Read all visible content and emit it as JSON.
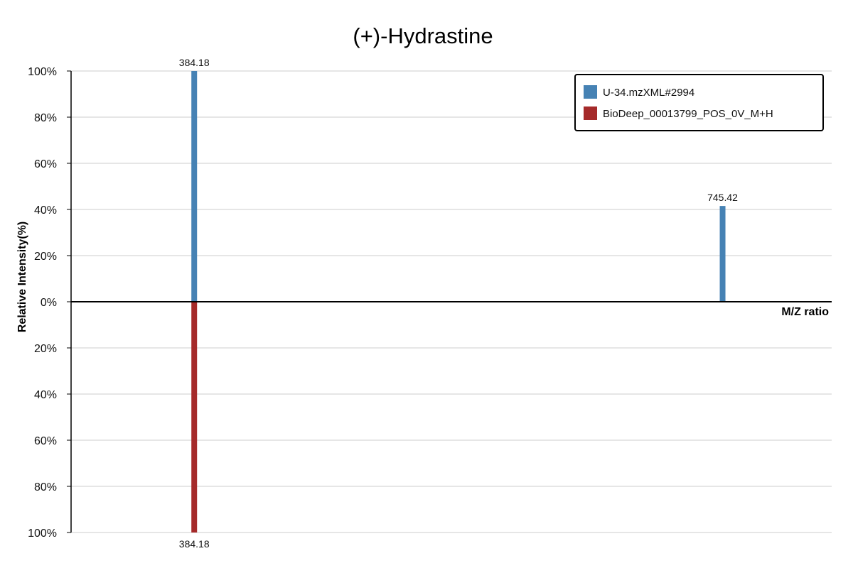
{
  "chart_data": {
    "type": "bar",
    "title": "(+)-Hydrastine",
    "xlabel": "M/Z ratio",
    "ylabel": "Relative Intensity(%)",
    "y_ticks_top": [
      "100%",
      "80%",
      "60%",
      "40%",
      "20%",
      "0%"
    ],
    "y_ticks_bottom": [
      "20%",
      "40%",
      "60%",
      "80%",
      "100%"
    ],
    "ylim": [
      -100,
      100
    ],
    "xlim": [
      300,
      820
    ],
    "grid": true,
    "legend_position": "top-right",
    "series": [
      {
        "name": "U-34.mzXML#2994",
        "color": "#4682b4",
        "direction": "up",
        "peaks": [
          {
            "mz": 384.18,
            "intensity": 100,
            "label": "384.18"
          },
          {
            "mz": 745.42,
            "intensity": 41.5,
            "label": "745.42"
          }
        ]
      },
      {
        "name": "BioDeep_00013799_POS_0V_M+H",
        "color": "#a52a2a",
        "direction": "down",
        "peaks": [
          {
            "mz": 384.18,
            "intensity": 100,
            "label": "384.18"
          }
        ]
      }
    ]
  }
}
